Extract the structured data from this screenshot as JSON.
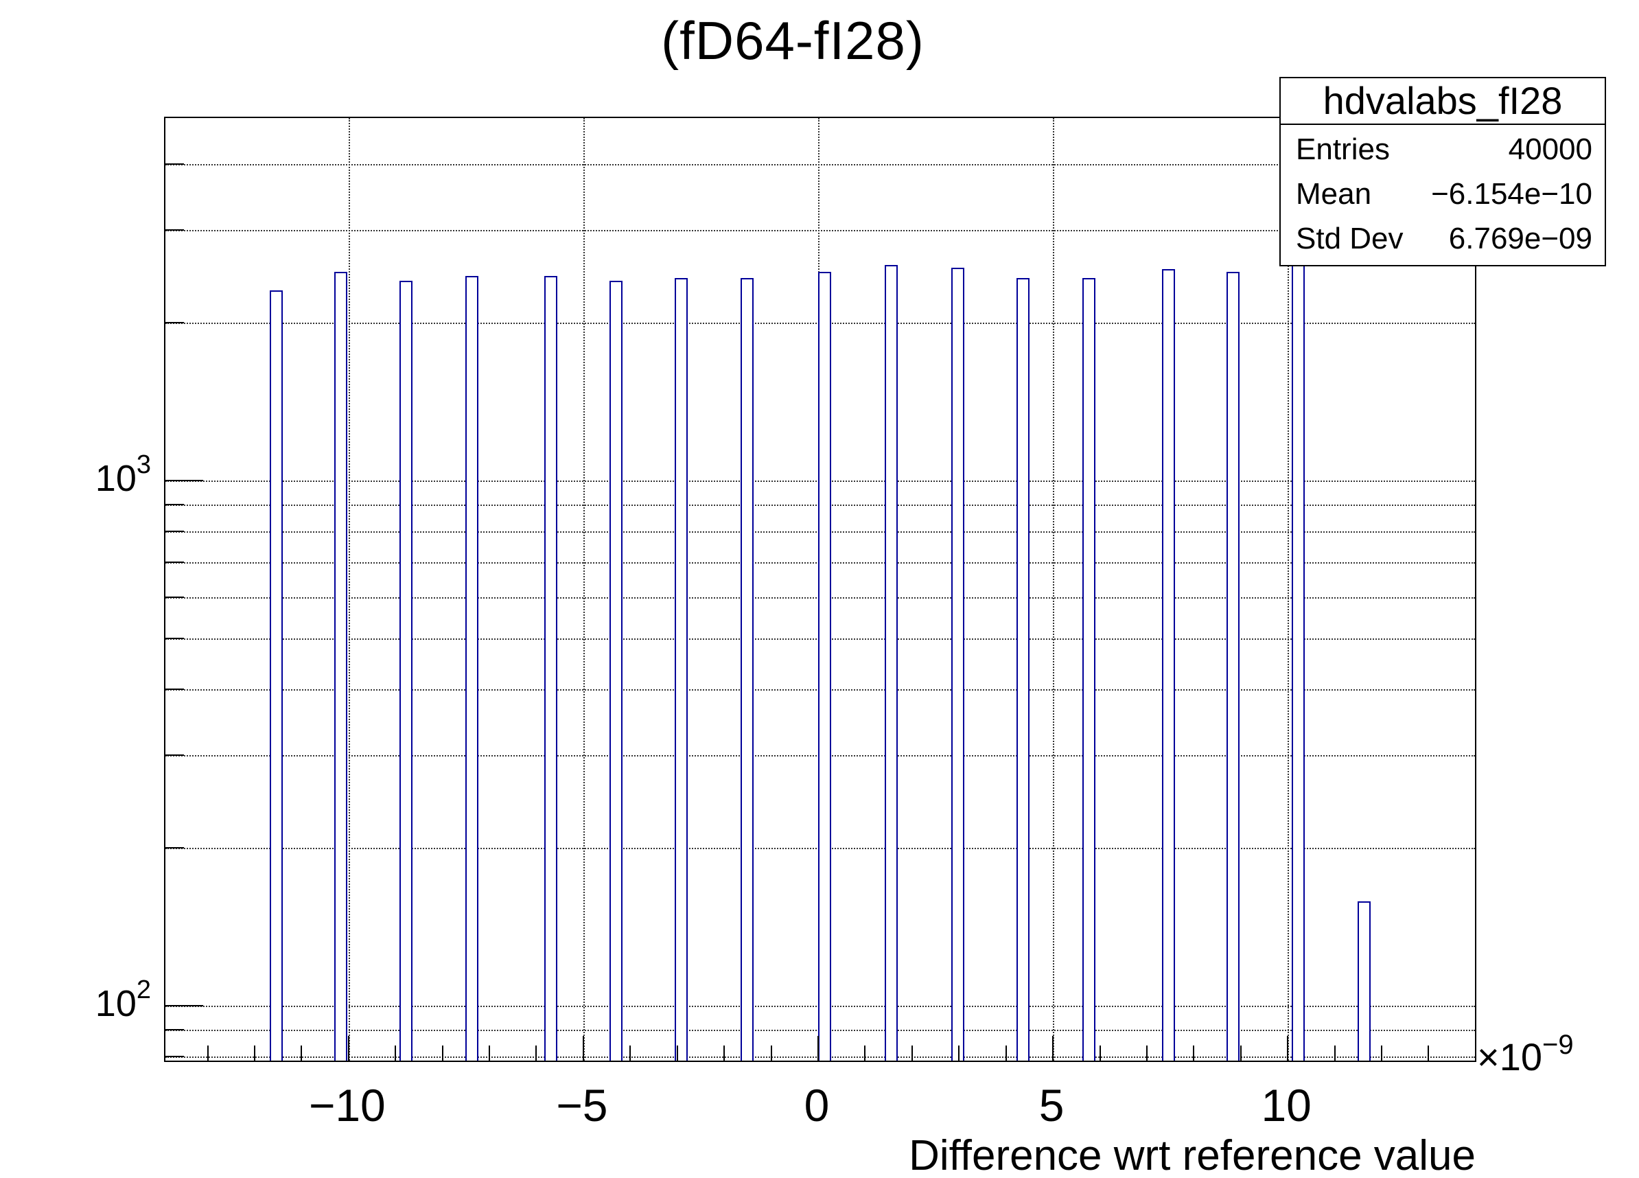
{
  "title": "(fD64-fI28)",
  "stats": {
    "name": "hdvalabs_fI28",
    "rows": [
      {
        "label": "Entries",
        "value": "40000"
      },
      {
        "label": "Mean",
        "value": "−6.154e−10"
      },
      {
        "label": "Std Dev",
        "value": "6.769e−09"
      }
    ]
  },
  "x_axis": {
    "title": "Difference wrt reference value",
    "scale_label": "×10",
    "scale_exponent": "−9",
    "major_ticks": [
      {
        "value": -10,
        "label": "−10"
      },
      {
        "value": -5,
        "label": "−5"
      },
      {
        "value": 0,
        "label": "0"
      },
      {
        "value": 5,
        "label": "5"
      },
      {
        "value": 10,
        "label": "10"
      }
    ],
    "minor_tick_values": [
      -13,
      -12,
      -11,
      -10,
      -9,
      -8,
      -7,
      -6,
      -5,
      -4,
      -3,
      -2,
      -1,
      0,
      1,
      2,
      3,
      4,
      5,
      6,
      7,
      8,
      9,
      10,
      11,
      12,
      13
    ],
    "range": [
      -13.9,
      14.0
    ]
  },
  "y_axis": {
    "scale": "log",
    "major_ticks": [
      {
        "value": 100,
        "base": "10",
        "exp": "2"
      },
      {
        "value": 1000,
        "base": "10",
        "exp": "3"
      }
    ],
    "gridline_values": [
      80,
      90,
      100,
      200,
      300,
      400,
      500,
      600,
      700,
      800,
      900,
      1000,
      2000,
      3000,
      4000
    ],
    "range": [
      79,
      4900
    ]
  },
  "chart_data": {
    "type": "bar",
    "title": "(fD64-fI28)",
    "xlabel": "Difference wrt reference value",
    "ylabel": "",
    "x_unit": "1e-9",
    "ylog": true,
    "xlim": [
      -13.9,
      14.0
    ],
    "ylim": [
      79,
      4900
    ],
    "grid": true,
    "legend": "none",
    "bar_width_units": 0.28,
    "color": "#000099",
    "bars": [
      {
        "x": -11.54,
        "count": 2300
      },
      {
        "x": -10.16,
        "count": 2500
      },
      {
        "x": -8.77,
        "count": 2400
      },
      {
        "x": -7.38,
        "count": 2450
      },
      {
        "x": -5.69,
        "count": 2450
      },
      {
        "x": -4.31,
        "count": 2400
      },
      {
        "x": -2.91,
        "count": 2430
      },
      {
        "x": -1.51,
        "count": 2430
      },
      {
        "x": 0.14,
        "count": 2500
      },
      {
        "x": 1.56,
        "count": 2570
      },
      {
        "x": 2.98,
        "count": 2540
      },
      {
        "x": 4.37,
        "count": 2430
      },
      {
        "x": 5.77,
        "count": 2430
      },
      {
        "x": 7.46,
        "count": 2530
      },
      {
        "x": 8.84,
        "count": 2500
      },
      {
        "x": 10.23,
        "count": 2600
      },
      {
        "x": 11.62,
        "count": 158
      }
    ]
  }
}
